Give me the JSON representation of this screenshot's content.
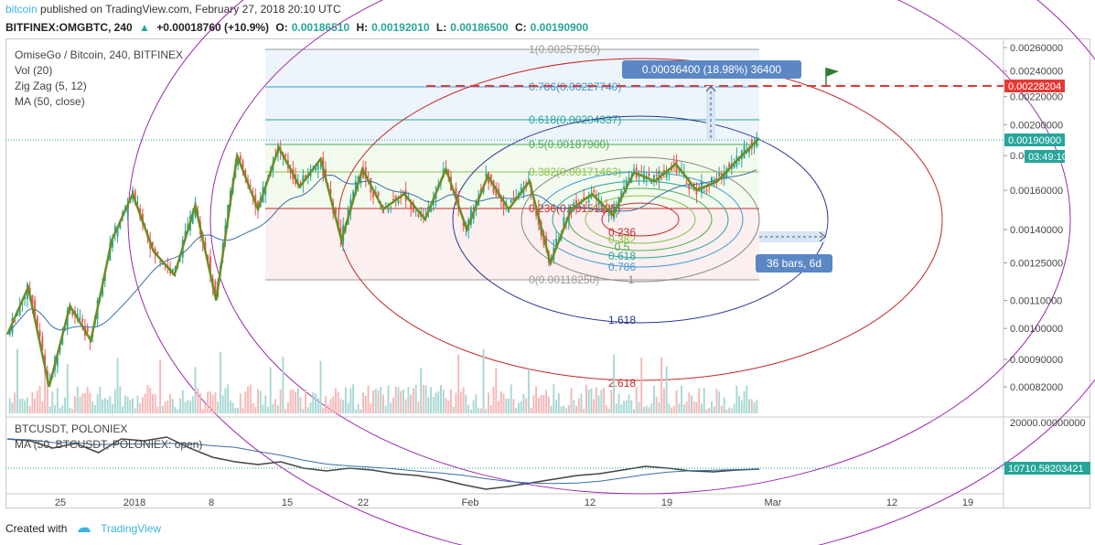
{
  "header": {
    "brand": "bitcoin",
    "published": "published on TradingView.com, February 27, 2018 20:10 UTC"
  },
  "ohlc": {
    "symbol": "BITFINEX:OMGBTC, 240",
    "change": "+0.00018760 (+10.9%)",
    "o_label": "O:",
    "o": "0.00186510",
    "h_label": "H:",
    "h": "0.00192010",
    "l_label": "L:",
    "l": "0.00186500",
    "c_label": "C:",
    "c": "0.00190900"
  },
  "legend": {
    "title": "OmiseGo / Bitcoin, 240, BITFINEX",
    "vol": "Vol (20)",
    "zigzag": "Zig Zag (5, 12)",
    "ma": "MA (50, close)"
  },
  "sub_legend": {
    "symbol": "BTCUSDT, POLONIEX",
    "ma": "MA (50, BTCUSDT, POLONIEX: open)"
  },
  "annotations": {
    "measure_label": "0.00036400 (18.98%) 36400",
    "range_label": "36 bars, 6d"
  },
  "price_tags": {
    "target": "0.00228204",
    "last": "0.00190900",
    "countdown": "03:49:10",
    "btc_last": "10710.58203421"
  },
  "footer": {
    "created_with": "Created with",
    "tradingview": "TradingView"
  },
  "chart_data": [
    {
      "type": "candlestick",
      "title": "OmiseGo / Bitcoin, 240, BITFINEX",
      "x_ticks": [
        "25",
        "2018",
        "8",
        "15",
        "22",
        "Feb",
        "12",
        "19",
        "Mar",
        "12",
        "19"
      ],
      "y_ticks": [
        "0.00260000",
        "0.00240000",
        "0.00220000",
        "0.00200000",
        "0.00180000",
        "0.00160000",
        "0.00140000",
        "0.00125000",
        "0.00110000",
        "0.00100000",
        "0.00090000",
        "0.00082000"
      ],
      "y_scale": "log",
      "colors": {
        "up": "#26a69a",
        "down": "#ef5350",
        "zigzag": "#6b8e23",
        "ma": "#3a6ea5"
      },
      "approx_price_path": [
        0.00098,
        0.00115,
        0.00082,
        0.00108,
        0.00096,
        0.00135,
        0.00158,
        0.0013,
        0.0012,
        0.00152,
        0.0011,
        0.0018,
        0.0015,
        0.00185,
        0.00162,
        0.00178,
        0.00135,
        0.00172,
        0.0015,
        0.00158,
        0.00145,
        0.00172,
        0.0014,
        0.00168,
        0.0015,
        0.00165,
        0.00125,
        0.0015,
        0.00158,
        0.00147,
        0.0017,
        0.00165,
        0.00175,
        0.0016,
        0.00165,
        0.00178,
        0.00191
      ],
      "fibonacci_retracement": [
        {
          "level": "1",
          "price": "0.00257550"
        },
        {
          "level": "0.786",
          "price": "0.00227740"
        },
        {
          "level": "0.618",
          "price": "0.00204337"
        },
        {
          "level": "0.5",
          "price": "0.00187900"
        },
        {
          "level": "0.382",
          "price": "0.00171463"
        },
        {
          "level": "0.236",
          "price": "0.00151125"
        },
        {
          "level": "0",
          "price": "0.00118250"
        }
      ],
      "fib_circles": [
        "0.236",
        "0.382",
        "0.5",
        "0.618",
        "0.786",
        "1",
        "1.618",
        "2.618"
      ],
      "target_line": 0.00228204,
      "last_price": 0.001909
    },
    {
      "type": "line",
      "title": "BTCUSDT, POLONIEX",
      "y_ticks": [
        "20000.00000000"
      ],
      "last_value": 10710.58203421
    }
  ]
}
